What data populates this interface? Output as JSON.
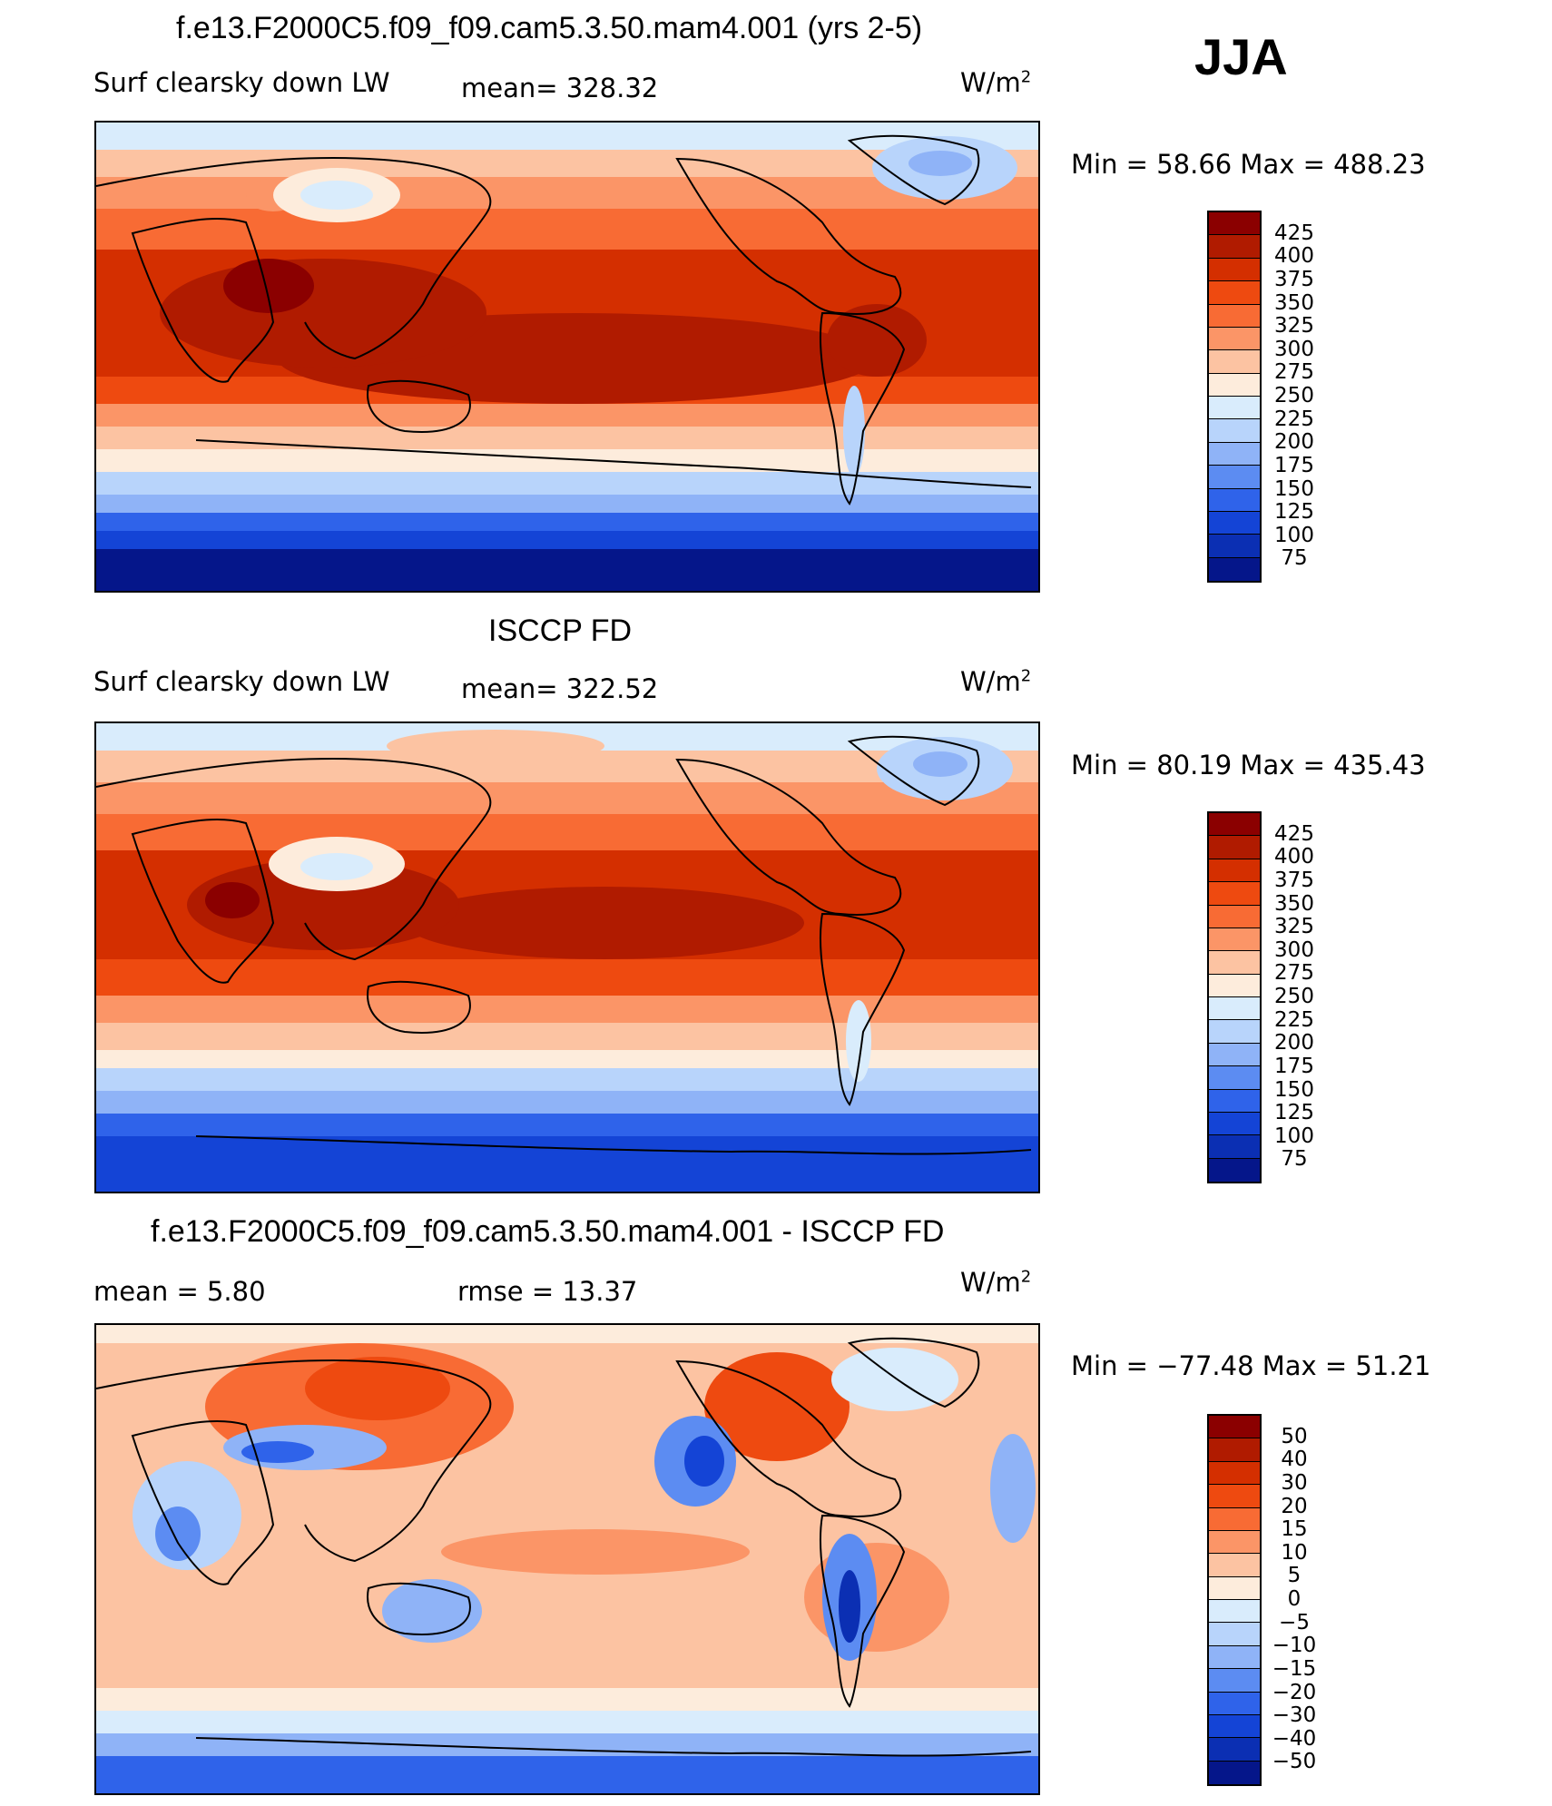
{
  "season": "JJA",
  "panels": [
    {
      "id": "model",
      "title": "f.e13.F2000C5.f09_f09.cam5.3.50.mam4.001 (yrs 2-5)",
      "left_label": "Surf clearsky down LW",
      "center_label": "mean= 328.32",
      "units": "W/m",
      "units_sup": "2",
      "minmax": "Min =   58.66  Max  =  488.23",
      "colorbar": {
        "labels": [
          "425",
          "400",
          "375",
          "350",
          "325",
          "300",
          "275",
          "250",
          "225",
          "200",
          "175",
          "150",
          "125",
          "100",
          "75"
        ],
        "colors": [
          "#8b0000",
          "#b01b00",
          "#d42f00",
          "#ee4a10",
          "#f86b34",
          "#fb9567",
          "#fcc3a2",
          "#fdecdc",
          "#d9ecfc",
          "#b8d4fb",
          "#8fb3f7",
          "#5c8cf2",
          "#2f63ea",
          "#1444d6",
          "#0b2fb3",
          "#05168a"
        ]
      }
    },
    {
      "id": "obs",
      "title": "ISCCP FD",
      "left_label": "Surf clearsky down LW",
      "center_label": "mean= 322.52",
      "units": "W/m",
      "units_sup": "2",
      "minmax": "Min =   80.19  Max  =  435.43",
      "colorbar": {
        "labels": [
          "425",
          "400",
          "375",
          "350",
          "325",
          "300",
          "275",
          "250",
          "225",
          "200",
          "175",
          "150",
          "125",
          "100",
          "75"
        ],
        "colors": [
          "#8b0000",
          "#b01b00",
          "#d42f00",
          "#ee4a10",
          "#f86b34",
          "#fb9567",
          "#fcc3a2",
          "#fdecdc",
          "#d9ecfc",
          "#b8d4fb",
          "#8fb3f7",
          "#5c8cf2",
          "#2f63ea",
          "#1444d6",
          "#0b2fb3",
          "#05168a"
        ]
      }
    },
    {
      "id": "diff",
      "title": "f.e13.F2000C5.f09_f09.cam5.3.50.mam4.001 - ISCCP FD",
      "left_label": "mean =      5.80",
      "center_label": "rmse =     13.37",
      "units": "W/m",
      "units_sup": "2",
      "minmax": "Min = −77.48  Max  =    51.21",
      "colorbar": {
        "labels": [
          "50",
          "40",
          "30",
          "20",
          "15",
          "10",
          "5",
          "0",
          "−5",
          "−10",
          "−15",
          "−20",
          "−30",
          "−40",
          "−50"
        ],
        "colors": [
          "#8b0000",
          "#b01b00",
          "#d42f00",
          "#ee4a10",
          "#f86b34",
          "#fb9567",
          "#fcc3a2",
          "#fdecdc",
          "#d9ecfc",
          "#b8d4fb",
          "#8fb3f7",
          "#5c8cf2",
          "#2f63ea",
          "#1444d6",
          "#0b2fb3",
          "#05168a"
        ]
      }
    }
  ]
}
